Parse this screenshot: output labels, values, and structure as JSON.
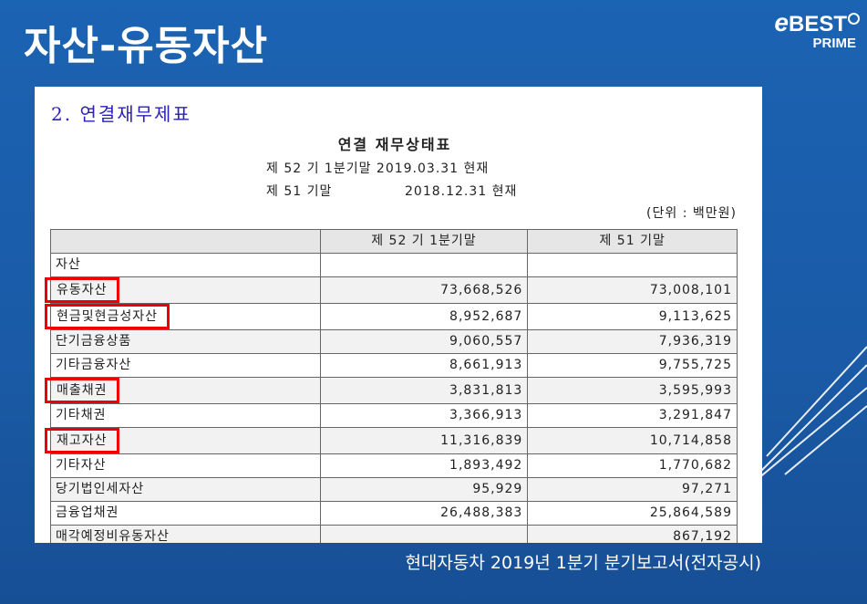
{
  "slide": {
    "title": "자산-유동자산",
    "logo_main": "BEST",
    "logo_e": "e",
    "logo_sub": "PRIME",
    "caption": "현대자동차 2019년 1분기 분기보고서(전자공시)"
  },
  "document": {
    "section_heading": "2. 연결재무제표",
    "title": "연결 재무상태표",
    "period_current": "제 52 기 1분기말 2019.03.31 현재",
    "period_prior_label": "제 51 기말",
    "period_prior_date": "2018.12.31 현재",
    "unit": "(단위 : 백만원)"
  },
  "table": {
    "headers": [
      "",
      "제 52 기 1분기말",
      "제 51 기말"
    ],
    "rows": [
      {
        "label": "자산",
        "current": "",
        "prior": "",
        "level": 0,
        "highlight": false
      },
      {
        "label": "유동자산",
        "current": "73,668,526",
        "prior": "73,008,101",
        "level": 1,
        "highlight": true
      },
      {
        "label": "현금및현금성자산",
        "current": "8,952,687",
        "prior": "9,113,625",
        "level": 2,
        "highlight": true
      },
      {
        "label": "단기금융상품",
        "current": "9,060,557",
        "prior": "7,936,319",
        "level": 2,
        "highlight": false
      },
      {
        "label": "기타금융자산",
        "current": "8,661,913",
        "prior": "9,755,725",
        "level": 2,
        "highlight": false
      },
      {
        "label": "매출채권",
        "current": "3,831,813",
        "prior": "3,595,993",
        "level": 2,
        "highlight": true
      },
      {
        "label": "기타채권",
        "current": "3,366,913",
        "prior": "3,291,847",
        "level": 2,
        "highlight": false
      },
      {
        "label": "재고자산",
        "current": "11,316,839",
        "prior": "10,714,858",
        "level": 2,
        "highlight": true
      },
      {
        "label": "기타자산",
        "current": "1,893,492",
        "prior": "1,770,682",
        "level": 2,
        "highlight": false
      },
      {
        "label": "당기법인세자산",
        "current": "95,929",
        "prior": "97,271",
        "level": 2,
        "highlight": false
      },
      {
        "label": "금융업채권",
        "current": "26,488,383",
        "prior": "25,864,589",
        "level": 2,
        "highlight": false
      },
      {
        "label": "매각예정비유동자산",
        "current": "",
        "prior": "867,192",
        "level": 2,
        "highlight": false
      }
    ]
  },
  "colors": {
    "background": "#1a5fae",
    "heading": "#2a1fb8",
    "highlight_box": "#e00000"
  }
}
